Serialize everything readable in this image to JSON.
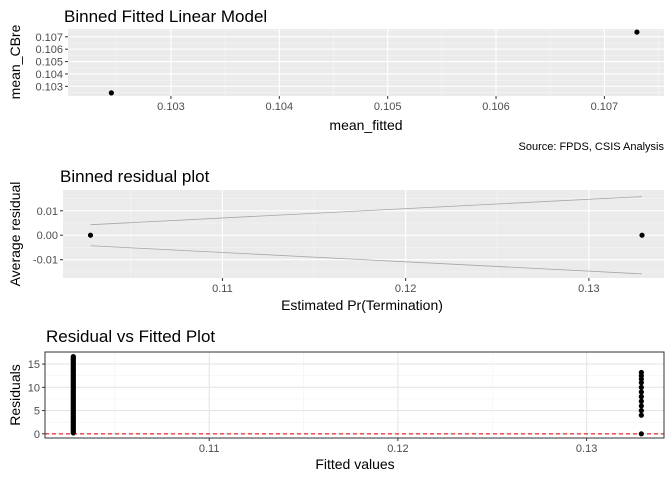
{
  "chart_data": [
    {
      "type": "scatter",
      "title": "Binned Fitted Linear Model",
      "xlabel": "mean_fitted",
      "ylabel": "mean_CBre",
      "caption": "Source: FPDS, CSIS Analysis",
      "xlim": [
        0.10205,
        0.10755
      ],
      "ylim": [
        0.10222,
        0.10763
      ],
      "xticks": [
        0.103,
        0.104,
        0.105,
        0.106,
        0.107
      ],
      "xtick_labels": [
        "0.103",
        "0.104",
        "0.105",
        "0.106",
        "0.107"
      ],
      "yticks": [
        0.103,
        0.104,
        0.105,
        0.106,
        0.107
      ],
      "ytick_labels": [
        "0.103",
        "0.104",
        "0.105",
        "0.106",
        "0.107"
      ],
      "grid": true,
      "background": "gray",
      "points": [
        {
          "x": 0.10245,
          "y": 0.10247
        },
        {
          "x": 0.1073,
          "y": 0.10738
        }
      ]
    },
    {
      "type": "scatter",
      "title": "Binned residual plot",
      "xlabel": "Estimated Pr(Termination)",
      "ylabel": "Average residual",
      "xlim": [
        0.1013,
        0.1341
      ],
      "ylim": [
        -0.0175,
        0.0185
      ],
      "xticks": [
        0.11,
        0.12,
        0.13
      ],
      "xtick_labels": [
        "0.11",
        "0.12",
        "0.13"
      ],
      "yticks": [
        0.01,
        0.0,
        -0.01
      ],
      "ytick_labels": [
        "0.01",
        "0.00",
        "-0.01"
      ],
      "grid": true,
      "background": "gray",
      "points": [
        {
          "x": 0.1028,
          "y": 0.0
        },
        {
          "x": 0.1329,
          "y": 0.0
        }
      ],
      "bound_lines": [
        {
          "name": "upper",
          "x": [
            0.1028,
            0.1329
          ],
          "y": [
            0.0043,
            0.0158
          ]
        },
        {
          "name": "lower",
          "x": [
            0.1028,
            0.1329
          ],
          "y": [
            -0.0043,
            -0.0158
          ]
        }
      ]
    },
    {
      "type": "scatter",
      "title": "Residual vs Fitted Plot",
      "xlabel": "Fitted values",
      "ylabel": "Residuals",
      "xlim": [
        0.1013,
        0.1341
      ],
      "ylim": [
        -0.9,
        17.6
      ],
      "xticks": [
        0.11,
        0.12,
        0.13
      ],
      "xtick_labels": [
        "0.11",
        "0.12",
        "0.13"
      ],
      "yticks": [
        0,
        5,
        10,
        15
      ],
      "ytick_labels": [
        "0",
        "5",
        "10",
        "15"
      ],
      "grid": true,
      "background": "white",
      "reference_line": {
        "y": 0,
        "style": "dashed",
        "color": "#e00000"
      },
      "point_groups": [
        {
          "x": 0.1028,
          "y_min": 0.2,
          "y_max": 16.6,
          "count": 60
        },
        {
          "x": 0.1329,
          "y": [
            0,
            4,
            5,
            6,
            7,
            8,
            9,
            10,
            11,
            11.8,
            12.5,
            13.2
          ]
        }
      ]
    }
  ]
}
